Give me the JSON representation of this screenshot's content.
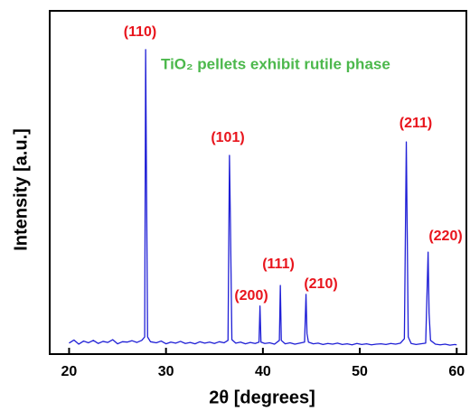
{
  "chart_data": {
    "type": "line",
    "xlabel": "2θ [degrees]",
    "ylabel": "Intensity [a.u.]",
    "xlim": [
      18,
      61
    ],
    "ylim": [
      0,
      100
    ],
    "xticks": [
      20,
      30,
      40,
      50,
      60
    ],
    "annotations": [
      "(110)",
      "(101)",
      "(200)",
      "(111)",
      "(210)",
      "(211)",
      "(220)",
      "TiO₂ pellets exhibit rutile phase"
    ],
    "series": [
      {
        "name": "TiO2",
        "color": "#1f1fd6",
        "x": [
          20,
          20.5,
          21,
          21.5,
          22,
          22.5,
          23,
          23.5,
          24,
          24.5,
          25,
          25.5,
          26,
          26.5,
          27,
          27.5,
          27.8,
          27.9,
          28.0,
          28.1,
          28.4,
          29,
          29.5,
          30,
          30.5,
          31,
          31.5,
          32,
          32.5,
          33,
          33.5,
          34,
          34.5,
          35,
          35.5,
          36,
          36.4,
          36.55,
          36.65,
          36.8,
          37.2,
          37.7,
          38.2,
          38.7,
          39.2,
          39.6,
          39.7,
          39.8,
          40.2,
          40.7,
          41.2,
          41.7,
          41.8,
          41.9,
          42.3,
          42.8,
          43.3,
          43.8,
          44.3,
          44.45,
          44.55,
          44.7,
          45.2,
          45.7,
          46.2,
          46.7,
          47.2,
          47.7,
          48.2,
          48.7,
          49.2,
          49.7,
          50.2,
          50.7,
          51.2,
          51.7,
          52.2,
          52.7,
          53.2,
          53.7,
          54.2,
          54.6,
          54.8,
          54.9,
          55.0,
          55.3,
          55.8,
          56.3,
          56.8,
          57.05,
          57.15,
          57.3,
          57.8,
          58.3,
          58.8,
          59.3,
          59.8,
          60
        ],
        "values": [
          3.2,
          4.1,
          2.9,
          3.8,
          3.3,
          4.0,
          3.1,
          3.7,
          3.4,
          4.2,
          3.0,
          3.6,
          3.5,
          3.9,
          3.4,
          4.0,
          5.0,
          88.7,
          45.8,
          5.0,
          3.6,
          3.3,
          3.8,
          3.0,
          3.5,
          3.2,
          3.7,
          3.1,
          3.4,
          3.0,
          3.6,
          3.2,
          3.5,
          3.1,
          3.6,
          3.3,
          4.0,
          57.9,
          38.0,
          4.2,
          3.2,
          3.5,
          3.0,
          3.4,
          3.1,
          3.5,
          14.0,
          3.5,
          3.1,
          3.3,
          2.9,
          4.0,
          20.0,
          4.0,
          3.0,
          3.3,
          2.9,
          3.2,
          3.5,
          17.4,
          6.0,
          3.5,
          3.0,
          3.2,
          2.8,
          3.1,
          2.9,
          3.2,
          2.8,
          3.0,
          2.7,
          3.1,
          2.8,
          3.0,
          2.7,
          2.9,
          3.0,
          2.8,
          3.1,
          2.9,
          3.2,
          4.5,
          61.8,
          34.0,
          5.0,
          3.1,
          2.8,
          3.0,
          3.2,
          29.7,
          12.0,
          4.0,
          2.9,
          2.7,
          2.9,
          2.6,
          2.8,
          2.7
        ]
      }
    ]
  }
}
